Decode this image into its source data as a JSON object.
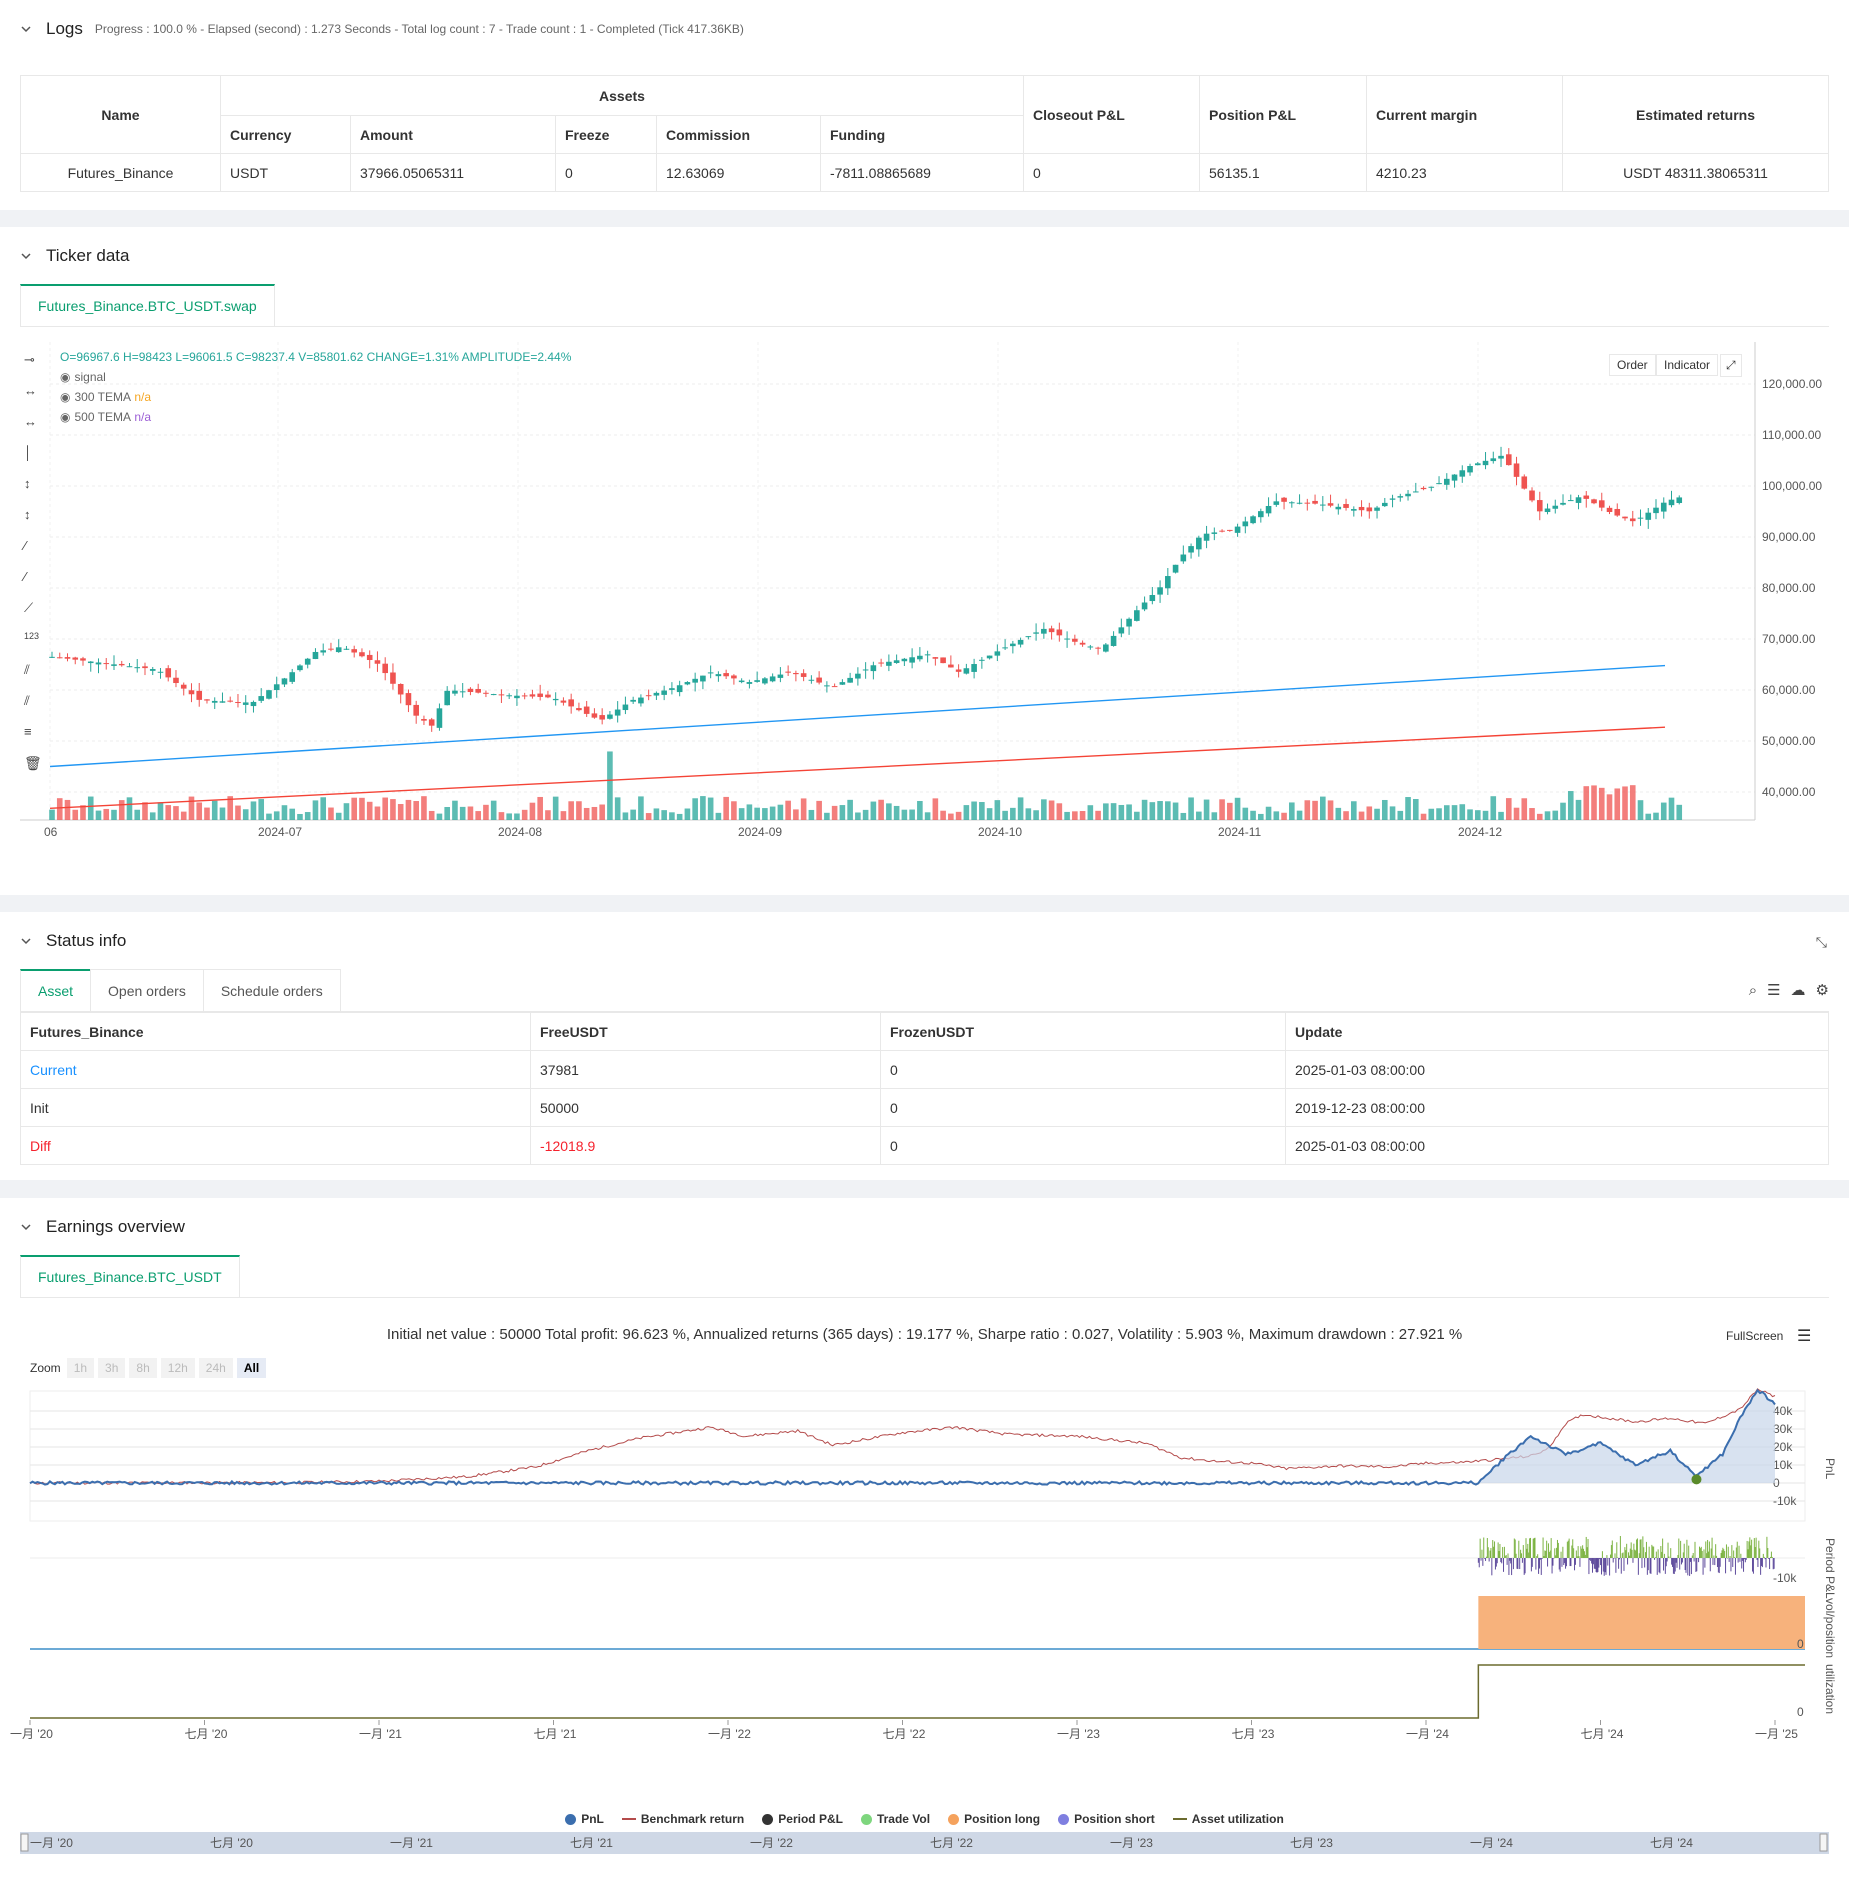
{
  "logs": {
    "title": "Logs",
    "summary": "Progress : 100.0 % - Elapsed (second) : 1.273  Seconds - Total log count : 7 - Trade count : 1 - Completed (Tick 417.36KB)",
    "table": {
      "h_name": "Name",
      "h_assets": "Assets",
      "h_currency": "Currency",
      "h_amount": "Amount",
      "h_freeze": "Freeze",
      "h_commission": "Commission",
      "h_funding": "Funding",
      "h_closeout": "Closeout P&L",
      "h_position": "Position P&L",
      "h_margin": "Current margin",
      "h_returns": "Estimated returns",
      "row": {
        "name": "Futures_Binance",
        "currency": "USDT",
        "amount": "37966.05065311",
        "freeze": "0",
        "commission": "12.63069",
        "funding": "-7811.08865689",
        "closeout": "0",
        "position": "56135.1",
        "margin": "4210.23",
        "returns": "USDT 48311.38065311"
      }
    }
  },
  "ticker": {
    "title": "Ticker data",
    "tab": "Futures_Binance.BTC_USDT.swap",
    "ohlc": "O=96967.6 H=98423 L=96061.5 C=98237.4 V=85801.62 CHANGE=1.31% AMPLITUDE=2.44%",
    "legend": {
      "signal": "signal",
      "tema300": "300 TEMA",
      "tema500": "500 TEMA",
      "na": "n/a"
    },
    "buttons": {
      "order": "Order",
      "indicator": "Indicator"
    },
    "y_ticks": [
      "120,000.00",
      "110,000.00",
      "100,000.00",
      "90,000.00",
      "80,000.00",
      "70,000.00",
      "60,000.00",
      "50,000.00",
      "40,000.00"
    ],
    "x_ticks": [
      "06",
      "2024-07",
      "2024-08",
      "2024-09",
      "2024-10",
      "2024-11",
      "2024-12"
    ],
    "colors": {
      "up": "#26a69a",
      "down": "#ef5350",
      "tema300": "#2196f3",
      "tema500": "#f44336"
    }
  },
  "status": {
    "title": "Status info",
    "tabs": [
      "Asset",
      "Open orders",
      "Schedule orders"
    ],
    "headers": [
      "Futures_Binance",
      "FreeUSDT",
      "FrozenUSDT",
      "Update"
    ],
    "rows": [
      {
        "label": "Current",
        "free": "37981",
        "frozen": "0",
        "update": "2025-01-03 08:00:00"
      },
      {
        "label": "Init",
        "free": "50000",
        "frozen": "0",
        "update": "2019-12-23 08:00:00"
      },
      {
        "label": "Diff",
        "free": "-12018.9",
        "frozen": "0",
        "update": "2025-01-03 08:00:00"
      }
    ]
  },
  "earnings": {
    "title": "Earnings overview",
    "tab": "Futures_Binance.BTC_USDT",
    "summary": "Initial net value : 50000 Total profit: 96.623 %, Annualized returns (365 days) : 19.177 %, Sharpe ratio : 0.027, Volatility : 5.903 %, Maximum drawdown : 27.921 %",
    "fullscreen": "FullScreen",
    "zoom": {
      "label": "Zoom",
      "options": [
        "1h",
        "3h",
        "8h",
        "12h",
        "24h",
        "All"
      ]
    },
    "pnl_ticks": [
      "40k",
      "30k",
      "20k",
      "10k",
      "0",
      "-10k"
    ],
    "period_ticks": [
      "-10k"
    ],
    "vol_ticks": [
      "0"
    ],
    "util_ticks": [
      "0"
    ],
    "axis_titles": {
      "pnl": "PnL",
      "period": "Period P&L",
      "vol": "vol/position",
      "util": "utilization"
    },
    "x_ticks": [
      "一月 '20",
      "七月 '20",
      "一月 '21",
      "七月 '21",
      "一月 '22",
      "七月 '22",
      "一月 '23",
      "七月 '23",
      "一月 '24",
      "七月 '24",
      "一月 '25"
    ],
    "nav_ticks": [
      "一月 '20",
      "七月 '20",
      "一月 '21",
      "七月 '21",
      "一月 '22",
      "七月 '22",
      "一月 '23",
      "七月 '23",
      "一月 '24",
      "七月 '24"
    ],
    "legend": [
      "PnL",
      "Benchmark return",
      "Period P&L",
      "Trade Vol",
      "Position long",
      "Position short",
      "Asset utilization"
    ],
    "legend_colors": [
      "#3b6eae",
      "#b44b4b",
      "#333333",
      "#7ed67e",
      "#f5a25d",
      "#7f7fe0",
      "#6b6b2f"
    ]
  }
}
